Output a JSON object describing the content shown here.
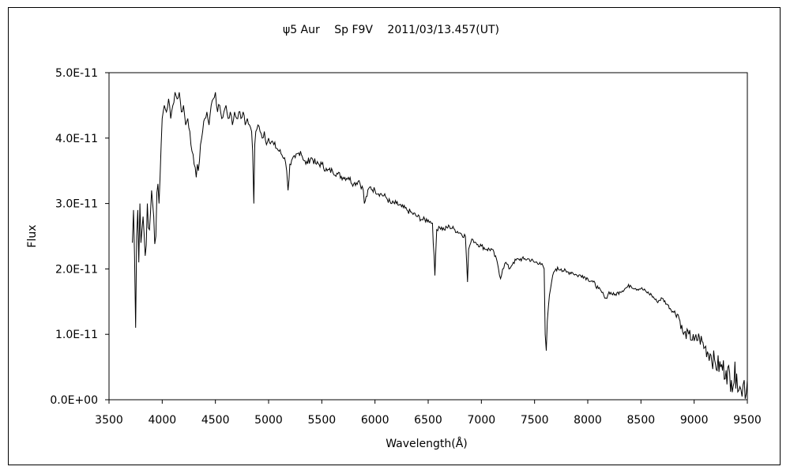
{
  "chart_data": {
    "type": "line",
    "title": "ψ5 Aur　 Sp F9V　 2011/03/13.457(UT)",
    "xlabel": "Wavelength(Å)",
    "ylabel": "Flux",
    "xlim": [
      3500,
      9500
    ],
    "ylim": [
      0,
      5e-11
    ],
    "xticks": [
      "3500",
      "4000",
      "4500",
      "5000",
      "5500",
      "6000",
      "6500",
      "7000",
      "7500",
      "8000",
      "8500",
      "9000",
      "9500"
    ],
    "yticks": [
      "0.0E+00",
      "1.0E-11",
      "2.0E-11",
      "3.0E-11",
      "4.0E-11",
      "5.0E-11"
    ],
    "grid": false,
    "legend": "none",
    "line_color": "#000000",
    "series": [
      {
        "x": [
          3720,
          3730,
          3740,
          3750,
          3760,
          3770,
          3780,
          3790,
          3800,
          3820,
          3840,
          3860,
          3880,
          3900,
          3920,
          3940,
          3960,
          3970,
          3980,
          3990,
          4000,
          4020,
          4040,
          4060,
          4080,
          4100,
          4120,
          4140,
          4160,
          4180,
          4200,
          4220,
          4240,
          4260,
          4280,
          4300,
          4320,
          4330,
          4340,
          4360,
          4380,
          4400,
          4420,
          4440,
          4460,
          4480,
          4500,
          4520,
          4540,
          4560,
          4580,
          4600,
          4620,
          4640,
          4660,
          4680,
          4700,
          4720,
          4740,
          4760,
          4780,
          4800,
          4820,
          4840,
          4850,
          4861,
          4870,
          4880,
          4900,
          4920,
          4940,
          4960,
          4980,
          5000,
          5050,
          5100,
          5150,
          5170,
          5183,
          5200,
          5250,
          5300,
          5350,
          5400,
          5450,
          5500,
          5550,
          5600,
          5650,
          5700,
          5750,
          5800,
          5850,
          5890,
          5900,
          5950,
          6000,
          6050,
          6100,
          6150,
          6200,
          6250,
          6300,
          6350,
          6400,
          6450,
          6500,
          6540,
          6563,
          6580,
          6600,
          6650,
          6700,
          6750,
          6800,
          6850,
          6870,
          6880,
          6900,
          6920,
          6950,
          7000,
          7050,
          7100,
          7150,
          7180,
          7200,
          7230,
          7260,
          7300,
          7350,
          7400,
          7450,
          7500,
          7550,
          7590,
          7600,
          7610,
          7620,
          7640,
          7660,
          7680,
          7700,
          7750,
          7800,
          7850,
          7900,
          7950,
          8000,
          8050,
          8100,
          8150,
          8180,
          8200,
          8250,
          8300,
          8350,
          8400,
          8450,
          8500,
          8550,
          8600,
          8650,
          8700,
          8750,
          8800,
          8850,
          8900,
          8950,
          9000,
          9050,
          9100,
          9150,
          9200,
          9250,
          9300,
          9350,
          9400,
          9430,
          9450,
          9470,
          9490,
          9500
        ],
        "y": [
          2.4e-11,
          2.9e-11,
          2.2e-11,
          1.1e-11,
          2.5e-11,
          2.9e-11,
          2.1e-11,
          3e-11,
          2.4e-11,
          2.8e-11,
          2.2e-11,
          3e-11,
          2.6e-11,
          3.2e-11,
          2.8e-11,
          2.5e-11,
          3.3e-11,
          3e-11,
          3.4e-11,
          3.9e-11,
          4.3e-11,
          4.5e-11,
          4.4e-11,
          4.6e-11,
          4.3e-11,
          4.5e-11,
          4.7e-11,
          4.6e-11,
          4.7e-11,
          4.4e-11,
          4.5e-11,
          4.2e-11,
          4.3e-11,
          4.1e-11,
          3.8e-11,
          3.6e-11,
          3.4e-11,
          3.6e-11,
          3.5e-11,
          3.9e-11,
          4.1e-11,
          4.3e-11,
          4.4e-11,
          4.2e-11,
          4.5e-11,
          4.6e-11,
          4.7e-11,
          4.4e-11,
          4.5e-11,
          4.3e-11,
          4.4e-11,
          4.5e-11,
          4.3e-11,
          4.4e-11,
          4.2e-11,
          4.4e-11,
          4.3e-11,
          4.4e-11,
          4.3e-11,
          4.4e-11,
          4.2e-11,
          4.3e-11,
          4.2e-11,
          4.1e-11,
          3.8e-11,
          3e-11,
          3.9e-11,
          4.1e-11,
          4.2e-11,
          4.1e-11,
          4e-11,
          4.1e-11,
          3.9e-11,
          4e-11,
          3.9e-11,
          3.8e-11,
          3.7e-11,
          3.5e-11,
          3.2e-11,
          3.6e-11,
          3.7e-11,
          3.8e-11,
          3.6e-11,
          3.7e-11,
          3.6e-11,
          3.6e-11,
          3.5e-11,
          3.5e-11,
          3.45e-11,
          3.4e-11,
          3.4e-11,
          3.3e-11,
          3.35e-11,
          3.2e-11,
          3e-11,
          3.25e-11,
          3.2e-11,
          3.15e-11,
          3.1e-11,
          3e-11,
          3e-11,
          2.95e-11,
          2.9e-11,
          2.85e-11,
          2.8e-11,
          2.75e-11,
          2.75e-11,
          2.7e-11,
          1.9e-11,
          2.6e-11,
          2.65e-11,
          2.6e-11,
          2.65e-11,
          2.6e-11,
          2.55e-11,
          2.5e-11,
          1.8e-11,
          2.3e-11,
          2.4e-11,
          2.45e-11,
          2.4e-11,
          2.35e-11,
          2.3e-11,
          2.3e-11,
          2.1e-11,
          1.85e-11,
          2e-11,
          2.1e-11,
          2e-11,
          2.1e-11,
          2.15e-11,
          2.15e-11,
          2.15e-11,
          2.1e-11,
          2.1e-11,
          2e-11,
          1e-11,
          7.5e-12,
          1.2e-11,
          1.6e-11,
          1.8e-11,
          1.95e-11,
          2e-11,
          2e-11,
          1.95e-11,
          1.95e-11,
          1.9e-11,
          1.9e-11,
          1.85e-11,
          1.8e-11,
          1.7e-11,
          1.6e-11,
          1.55e-11,
          1.65e-11,
          1.6e-11,
          1.65e-11,
          1.7e-11,
          1.75e-11,
          1.7e-11,
          1.7e-11,
          1.65e-11,
          1.6e-11,
          1.5e-11,
          1.55e-11,
          1.45e-11,
          1.35e-11,
          1.3e-11,
          1e-11,
          1e-11,
          9e-12,
          9.5e-12,
          8e-12,
          7e-12,
          5.5e-12,
          5e-12,
          4.5e-12,
          3e-12,
          4e-12,
          2e-12,
          5e-13,
          3e-12,
          1e-12,
          3e-12
        ]
      }
    ]
  }
}
